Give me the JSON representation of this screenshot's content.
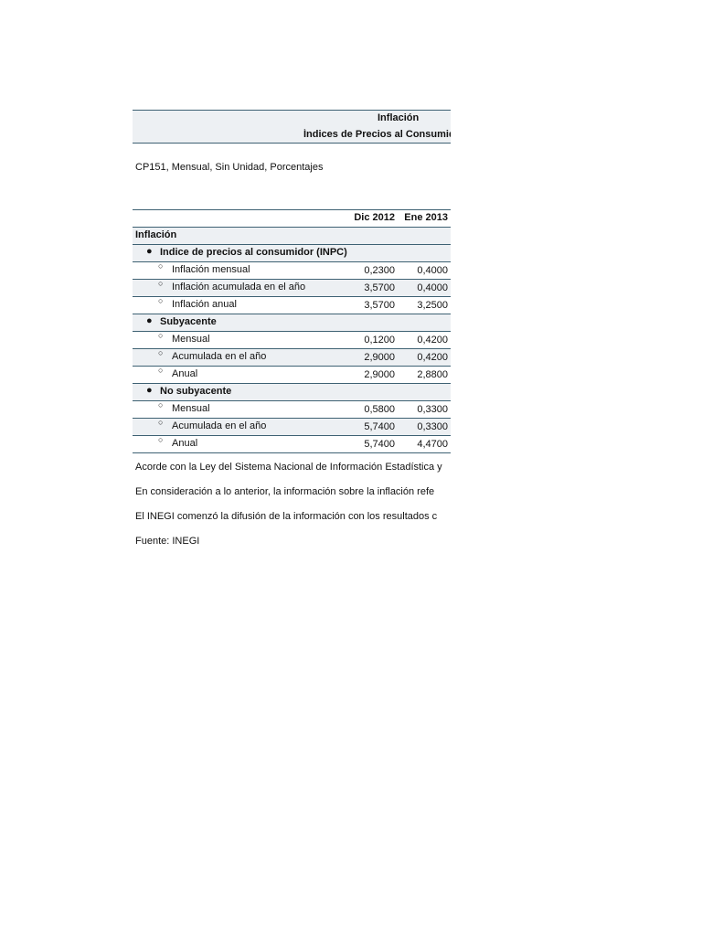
{
  "header": {
    "title": "Inflación",
    "subtitle": "Índices de Precios al Consumid"
  },
  "meta": "CP151, Mensual, Sin Unidad, Porcentajes",
  "table": {
    "columns": [
      "Dic 2012",
      "Ene 2013"
    ],
    "section": "Inflación",
    "groups": [
      {
        "label": "Indice de precios al consumidor (INPC)",
        "rows": [
          {
            "label": "Inflación mensual",
            "values": [
              "0,2300",
              "0,4000"
            ]
          },
          {
            "label": "Inflación acumulada en el año",
            "values": [
              "3,5700",
              "0,4000"
            ]
          },
          {
            "label": "Inflación anual",
            "values": [
              "3,5700",
              "3,2500"
            ]
          }
        ]
      },
      {
        "label": "Subyacente",
        "rows": [
          {
            "label": "Mensual",
            "values": [
              "0,1200",
              "0,4200"
            ]
          },
          {
            "label": "Acumulada en el año",
            "values": [
              "2,9000",
              "0,4200"
            ]
          },
          {
            "label": "Anual",
            "values": [
              "2,9000",
              "2,8800"
            ]
          }
        ]
      },
      {
        "label": "No subyacente",
        "rows": [
          {
            "label": "Mensual",
            "values": [
              "0,5800",
              "0,3300"
            ]
          },
          {
            "label": "Acumulada en el año",
            "values": [
              "5,7400",
              "0,3300"
            ]
          },
          {
            "label": "Anual",
            "values": [
              "5,7400",
              "4,4700"
            ]
          }
        ]
      }
    ]
  },
  "notes": [
    "Acorde con la Ley del Sistema Nacional de Información Estadística y",
    "En consideración a lo anterior, la información sobre la inflación refe",
    "El INEGI comenzó la difusión de la información con los resultados c",
    "Fuente: INEGI"
  ]
}
